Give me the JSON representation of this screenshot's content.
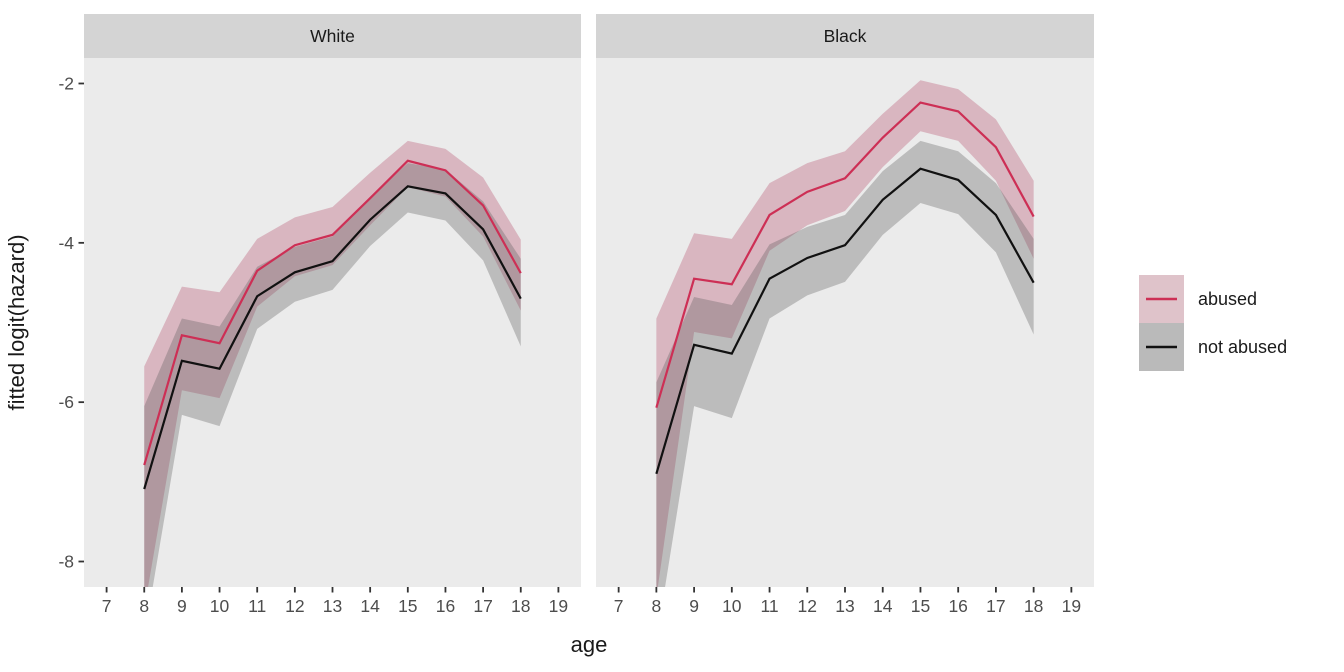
{
  "chart_data": {
    "type": "line",
    "title": "",
    "xlabel": "age",
    "ylabel": "fitted logit(hazard)",
    "x_ticks": [
      7,
      8,
      9,
      10,
      11,
      12,
      13,
      14,
      15,
      16,
      17,
      18,
      19
    ],
    "y_ticks": [
      -2,
      -4,
      -6,
      -8
    ],
    "xlim": [
      6.4,
      19.6
    ],
    "ylim": [
      -8.32,
      -1.68
    ],
    "grid": false,
    "legend_position": "right",
    "x": [
      8,
      9,
      10,
      11,
      12,
      13,
      14,
      15,
      16,
      17,
      18
    ],
    "facets": [
      {
        "label": "White",
        "series": [
          {
            "name": "abused",
            "fit": [
              -6.79,
              -5.16,
              -5.26,
              -4.35,
              -4.03,
              -3.9,
              -3.44,
              -2.97,
              -3.09,
              -3.53,
              -4.38
            ],
            "lower": [
              -8.6,
              -5.85,
              -5.95,
              -4.8,
              -4.42,
              -4.28,
              -3.78,
              -3.3,
              -3.42,
              -3.92,
              -4.85
            ],
            "upper": [
              -5.55,
              -4.55,
              -4.62,
              -3.95,
              -3.68,
              -3.55,
              -3.12,
              -2.72,
              -2.82,
              -3.18,
              -3.96
            ]
          },
          {
            "name": "not abused",
            "fit": [
              -7.09,
              -5.48,
              -5.58,
              -4.67,
              -4.37,
              -4.23,
              -3.71,
              -3.29,
              -3.38,
              -3.83,
              -4.7
            ],
            "lower": [
              -8.95,
              -6.16,
              -6.3,
              -5.08,
              -4.74,
              -4.59,
              -4.04,
              -3.62,
              -3.72,
              -4.22,
              -5.3
            ],
            "upper": [
              -6.05,
              -4.95,
              -5.05,
              -4.3,
              -4.05,
              -3.92,
              -3.42,
              -3.0,
              -3.08,
              -3.48,
              -4.2
            ]
          }
        ]
      },
      {
        "label": "Black",
        "series": [
          {
            "name": "abused",
            "fit": [
              -6.07,
              -4.45,
              -4.52,
              -3.65,
              -3.36,
              -3.19,
              -2.68,
              -2.24,
              -2.35,
              -2.8,
              -3.67
            ],
            "lower": [
              -8.45,
              -5.12,
              -5.2,
              -4.1,
              -3.78,
              -3.6,
              -3.05,
              -2.6,
              -2.72,
              -3.22,
              -4.2
            ],
            "upper": [
              -4.95,
              -3.88,
              -3.95,
              -3.25,
              -3.0,
              -2.85,
              -2.38,
              -1.96,
              -2.07,
              -2.45,
              -3.22
            ]
          },
          {
            "name": "not abused",
            "fit": [
              -6.9,
              -5.28,
              -5.39,
              -4.45,
              -4.19,
              -4.03,
              -3.46,
              -3.07,
              -3.21,
              -3.65,
              -4.5
            ],
            "lower": [
              -9.0,
              -6.05,
              -6.2,
              -4.95,
              -4.66,
              -4.49,
              -3.9,
              -3.5,
              -3.64,
              -4.12,
              -5.15
            ],
            "upper": [
              -5.75,
              -4.68,
              -4.78,
              -4.02,
              -3.8,
              -3.65,
              -3.1,
              -2.72,
              -2.85,
              -3.25,
              -3.95
            ]
          }
        ]
      }
    ],
    "legend": [
      {
        "label": "abused",
        "line_color": "#cd2f55",
        "fill_color": "#dfc3ca"
      },
      {
        "label": "not abused",
        "line_color": "#111111",
        "fill_color": "#bababa"
      }
    ]
  },
  "colors": {
    "panel_background": "#ebebeb",
    "strip_background": "#d4d4d4",
    "abused_line": "#cd2f55",
    "not_abused_line": "#111111",
    "abused_ribbon_rgba": "rgba(176,58,92,0.30)",
    "not_abused_ribbon_rgba": "rgba(90,90,90,0.32)",
    "tick_label": "#4d4d4d",
    "axis_title": "#1a1a1a",
    "strip_label": "#1a1a1a",
    "tick_mark": "#333333"
  }
}
